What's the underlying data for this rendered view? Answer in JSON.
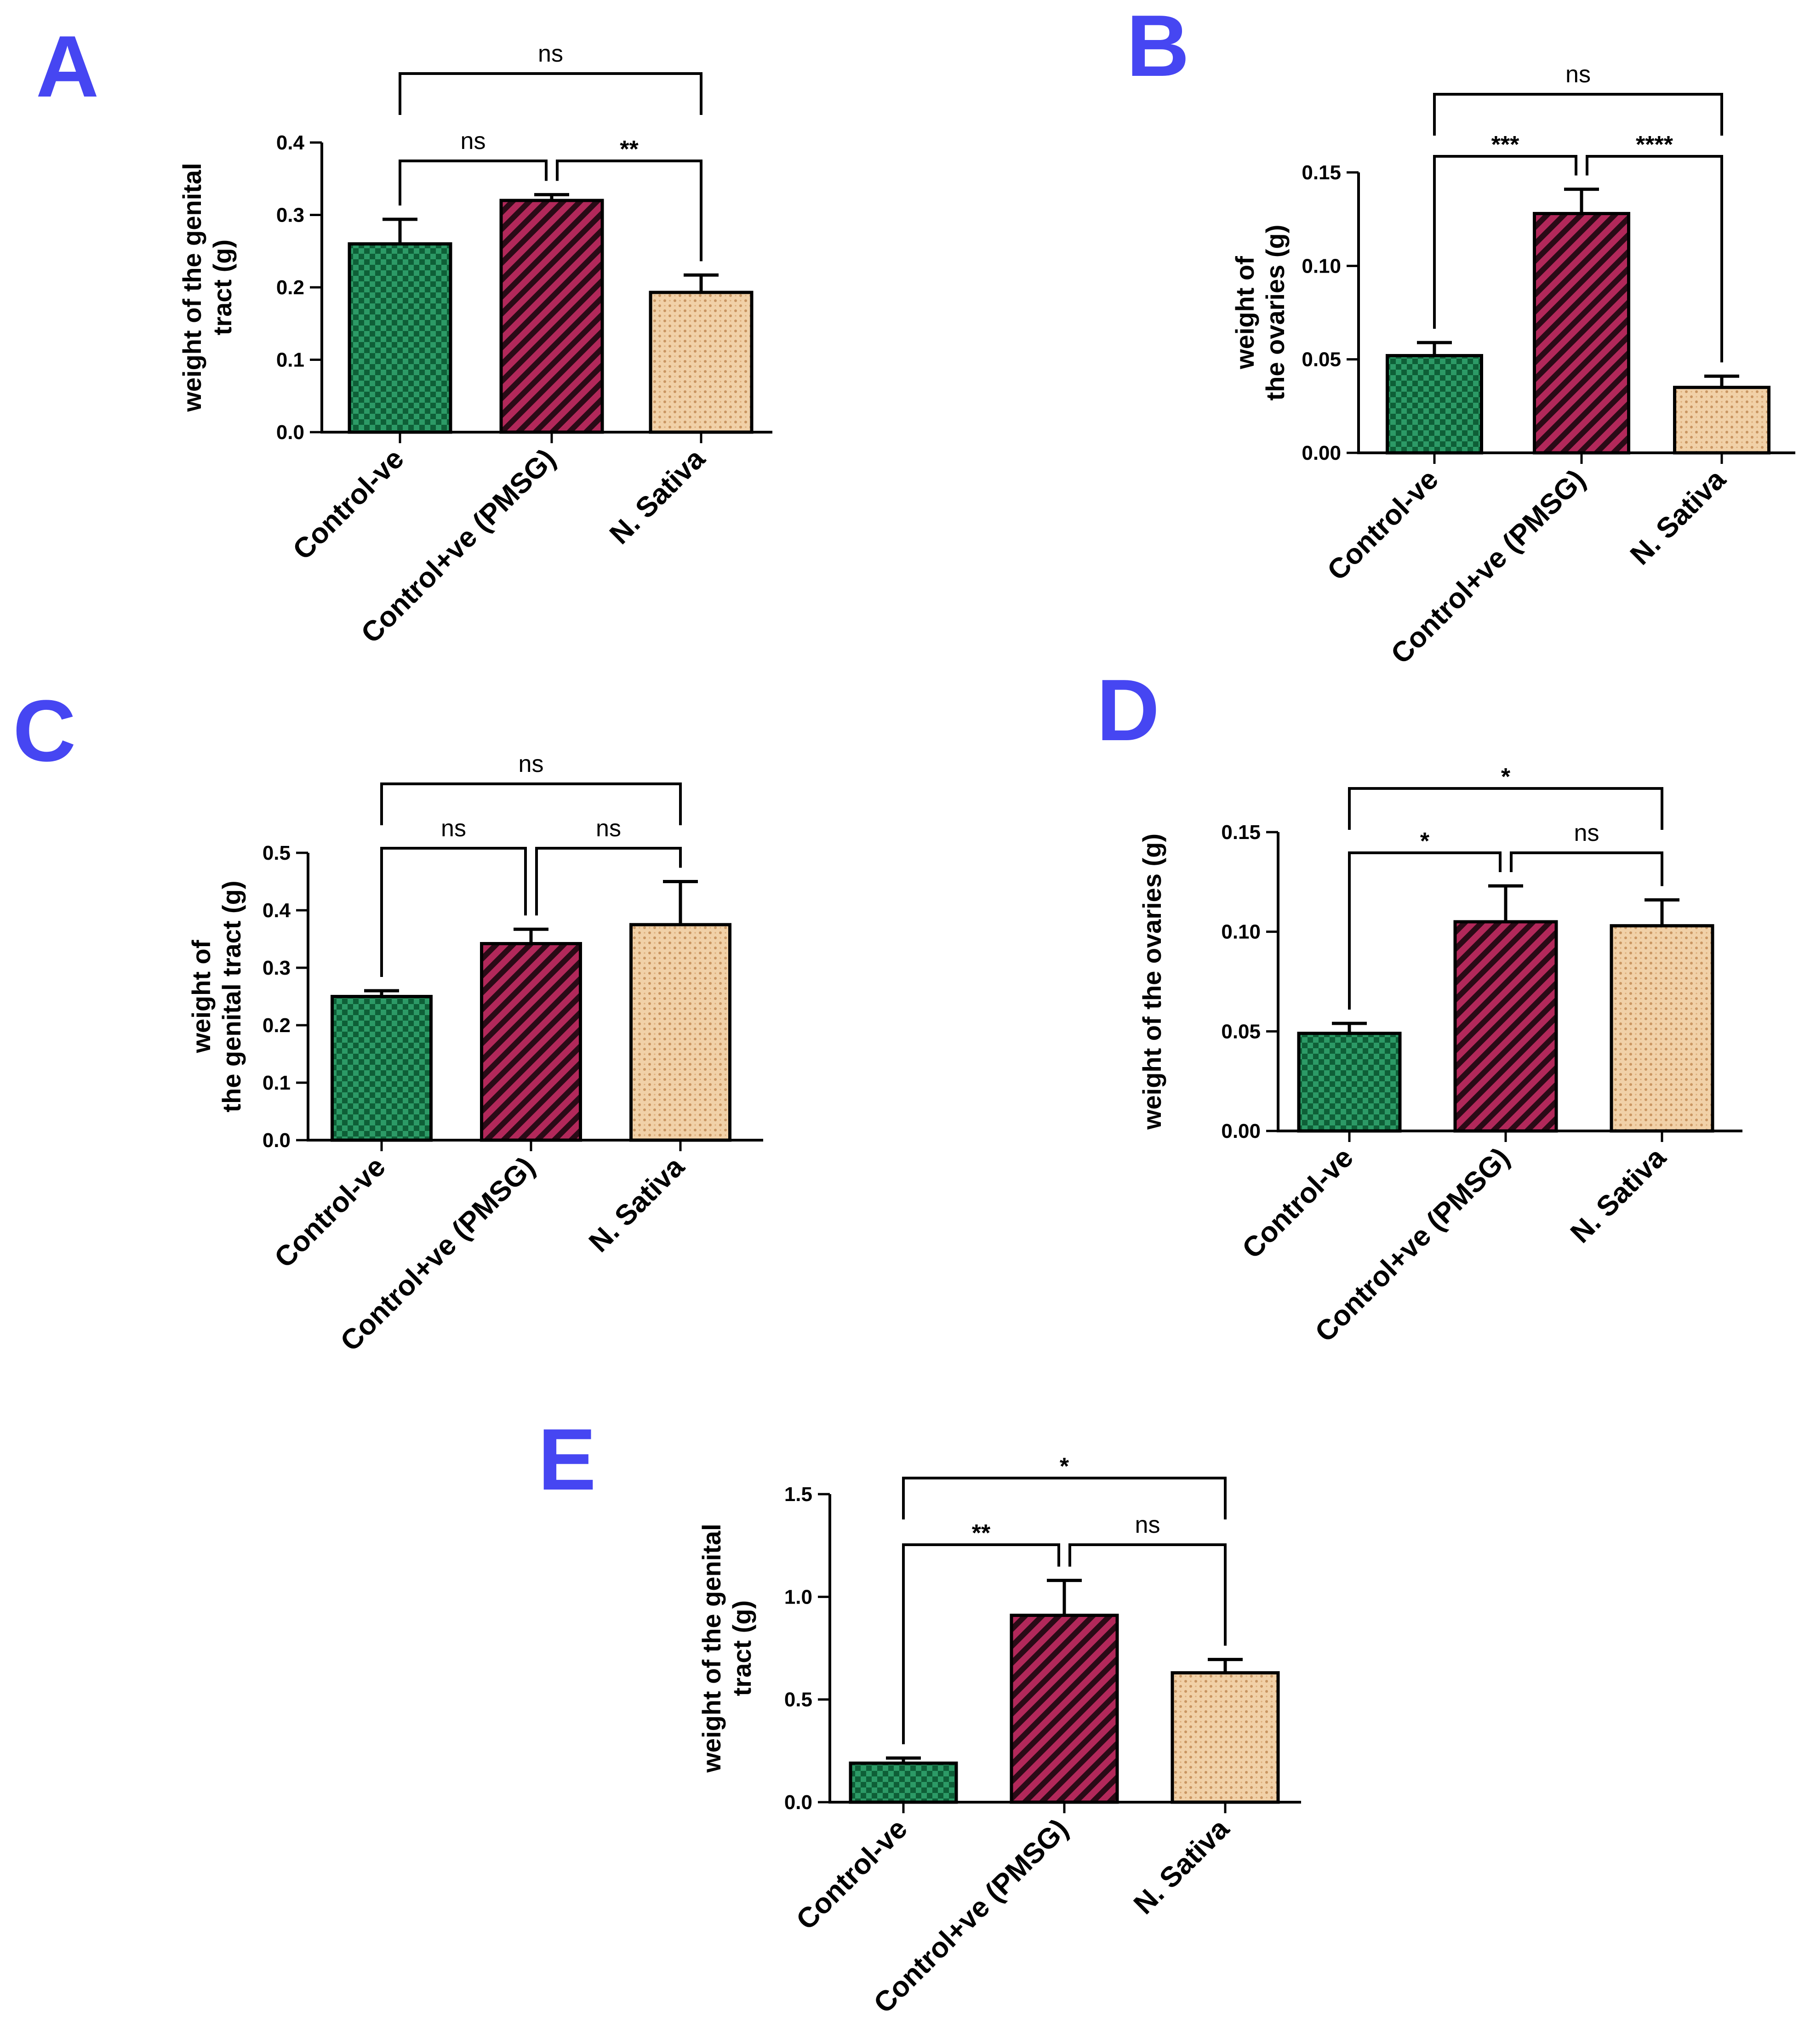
{
  "figure": {
    "label_color": "#4646f2",
    "bar_colors": {
      "green": "#1a7a4c",
      "maroon": "#9e1c4a",
      "tan": "#edc79d"
    }
  },
  "chart_data": [
    {
      "id": "A",
      "panel": "A",
      "type": "bar",
      "categories": [
        "Control-ve",
        "Control+ve (PMSG)",
        "N. Sativa"
      ],
      "values": [
        0.26,
        0.32,
        0.193
      ],
      "errors": [
        0.034,
        0.008,
        0.024
      ],
      "ylabel_lines": [
        "weight of the genital",
        "tract (g)"
      ],
      "ylim": [
        0,
        0.4
      ],
      "ticks": [
        "0.0",
        "0.1",
        "0.2",
        "0.3",
        "0.4"
      ],
      "tick_values": [
        0,
        0.1,
        0.2,
        0.3,
        0.4
      ],
      "comparisons": [
        {
          "from": 0,
          "to": 1,
          "label": "ns",
          "level": 1
        },
        {
          "from": 1,
          "to": 2,
          "label": "**",
          "level": 1
        },
        {
          "from": 0,
          "to": 2,
          "label": "ns",
          "level": 2
        }
      ]
    },
    {
      "id": "B",
      "panel": "B",
      "type": "bar",
      "categories": [
        "Control-ve",
        "Control+ve (PMSG)",
        "N. Sativa"
      ],
      "values": [
        0.052,
        0.128,
        0.035
      ],
      "errors": [
        0.007,
        0.013,
        0.006
      ],
      "ylabel_lines": [
        "weight of",
        "the ovaries (g)"
      ],
      "ylim": [
        0,
        0.15
      ],
      "ticks": [
        "0.00",
        "0.05",
        "0.10",
        "0.15"
      ],
      "tick_values": [
        0,
        0.05,
        0.1,
        0.15
      ],
      "comparisons": [
        {
          "from": 0,
          "to": 1,
          "label": "***",
          "level": 1
        },
        {
          "from": 1,
          "to": 2,
          "label": "****",
          "level": 1
        },
        {
          "from": 0,
          "to": 2,
          "label": "ns",
          "level": 2
        }
      ]
    },
    {
      "id": "C",
      "panel": "C",
      "type": "bar",
      "categories": [
        "Control-ve",
        "Control+ve (PMSG)",
        "N. Sativa"
      ],
      "values": [
        0.25,
        0.342,
        0.375
      ],
      "errors": [
        0.01,
        0.025,
        0.075
      ],
      "ylabel_lines": [
        "weight of",
        "the genital tract (g)"
      ],
      "ylim": [
        0,
        0.5
      ],
      "ticks": [
        "0.0",
        "0.1",
        "0.2",
        "0.3",
        "0.4",
        "0.5"
      ],
      "tick_values": [
        0,
        0.1,
        0.2,
        0.3,
        0.4,
        0.5
      ],
      "comparisons": [
        {
          "from": 0,
          "to": 1,
          "label": "ns",
          "level": 1
        },
        {
          "from": 1,
          "to": 2,
          "label": "ns",
          "level": 1
        },
        {
          "from": 0,
          "to": 2,
          "label": "ns",
          "level": 2
        }
      ]
    },
    {
      "id": "D",
      "panel": "D",
      "type": "bar",
      "categories": [
        "Control-ve",
        "Control+ve (PMSG)",
        "N. Sativa"
      ],
      "values": [
        0.049,
        0.105,
        0.103
      ],
      "errors": [
        0.005,
        0.018,
        0.013
      ],
      "ylabel_lines": [
        "weight of the ovaries (g)"
      ],
      "ylim": [
        0,
        0.15
      ],
      "ticks": [
        "0.00",
        "0.05",
        "0.10",
        "0.15"
      ],
      "tick_values": [
        0,
        0.05,
        0.1,
        0.15
      ],
      "comparisons": [
        {
          "from": 0,
          "to": 1,
          "label": "*",
          "level": 1
        },
        {
          "from": 1,
          "to": 2,
          "label": "ns",
          "level": 1
        },
        {
          "from": 0,
          "to": 2,
          "label": "*",
          "level": 2
        }
      ]
    },
    {
      "id": "E",
      "panel": "E",
      "type": "bar",
      "categories": [
        "Control-ve",
        "Control+ve (PMSG)",
        "N. Sativa"
      ],
      "values": [
        0.19,
        0.91,
        0.63
      ],
      "errors": [
        0.025,
        0.17,
        0.065
      ],
      "ylabel_lines": [
        "weight of the genital",
        "tract (g)"
      ],
      "ylim": [
        0,
        1.5
      ],
      "ticks": [
        "0.0",
        "0.5",
        "1.0",
        "1.5"
      ],
      "tick_values": [
        0,
        0.5,
        1.0,
        1.5
      ],
      "comparisons": [
        {
          "from": 0,
          "to": 1,
          "label": "**",
          "level": 1
        },
        {
          "from": 1,
          "to": 2,
          "label": "ns",
          "level": 1
        },
        {
          "from": 0,
          "to": 2,
          "label": "*",
          "level": 2
        }
      ]
    }
  ]
}
